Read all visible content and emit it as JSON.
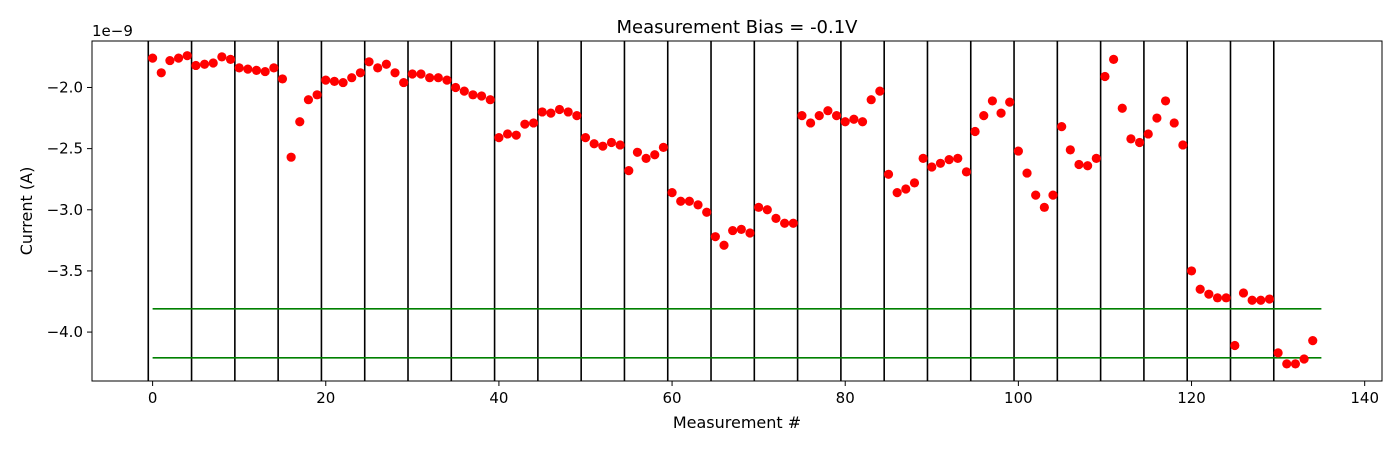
{
  "chart_data": {
    "type": "scatter",
    "title": "Measurement Bias = -0.1V",
    "xlabel": "Measurement #",
    "ylabel": "Current (A)",
    "offset_text": "1e−9",
    "xlim": [
      -7,
      142
    ],
    "ylim": [
      -4.4,
      -1.62
    ],
    "xticks": [
      0,
      20,
      40,
      60,
      80,
      100,
      120,
      140
    ],
    "yticks": [
      -2.0,
      -2.5,
      -3.0,
      -3.5,
      -4.0
    ],
    "ytick_labels": [
      "−2.0",
      "−2.5",
      "−3.0",
      "−3.5",
      "−4.0"
    ],
    "grid": false,
    "point_color": "#ff0000",
    "vline_color": "#000000",
    "hline_color": "#008000",
    "vertical_lines_x": [
      -0.5,
      4.5,
      9.5,
      14.5,
      19.5,
      24.5,
      29.5,
      34.5,
      39.5,
      44.5,
      49.5,
      54.5,
      59.5,
      64.5,
      69.5,
      74.5,
      79.5,
      84.5,
      89.5,
      94.5,
      99.5,
      104.5,
      109.5,
      114.5,
      119.5,
      124.5,
      129.5
    ],
    "horizontal_lines": [
      {
        "y": -3.81,
        "x": [
          0,
          135
        ]
      },
      {
        "y": -4.21,
        "x": [
          0,
          135
        ]
      }
    ],
    "series": [
      {
        "x": [
          0,
          1,
          2,
          3,
          4,
          5,
          6,
          7,
          8,
          9,
          10,
          11,
          12,
          13,
          14,
          15,
          16,
          17,
          18,
          19,
          20,
          21,
          22,
          23,
          24,
          25,
          26,
          27,
          28,
          29,
          30,
          31,
          32,
          33,
          34,
          35,
          36,
          37,
          38,
          39,
          40,
          41,
          42,
          43,
          44,
          45,
          46,
          47,
          48,
          49,
          50,
          51,
          52,
          53,
          54,
          55,
          56,
          57,
          58,
          59,
          60,
          61,
          62,
          63,
          64,
          65,
          66,
          67,
          68,
          69,
          70,
          71,
          72,
          73,
          74,
          75,
          76,
          77,
          78,
          79,
          80,
          81,
          82,
          83,
          84,
          85,
          86,
          87,
          88,
          89,
          90,
          91,
          92,
          93,
          94,
          95,
          96,
          97,
          98,
          99,
          100,
          101,
          102,
          103,
          104,
          105,
          106,
          107,
          108,
          109,
          110,
          111,
          112,
          113,
          114,
          115,
          116,
          117,
          118,
          119,
          120,
          121,
          122,
          123,
          124,
          125,
          126,
          127,
          128,
          129,
          130,
          131,
          132,
          133,
          134
        ],
        "y": [
          -1.76,
          -1.88,
          -1.78,
          -1.76,
          -1.74,
          -1.82,
          -1.81,
          -1.8,
          -1.75,
          -1.77,
          -1.84,
          -1.85,
          -1.86,
          -1.87,
          -1.84,
          -1.93,
          -2.57,
          -2.28,
          -2.1,
          -2.06,
          -1.94,
          -1.95,
          -1.96,
          -1.92,
          -1.88,
          -1.79,
          -1.84,
          -1.81,
          -1.88,
          -1.96,
          -1.89,
          -1.89,
          -1.92,
          -1.92,
          -1.94,
          -2.0,
          -2.03,
          -2.06,
          -2.07,
          -2.1,
          -2.41,
          -2.38,
          -2.39,
          -2.3,
          -2.29,
          -2.2,
          -2.21,
          -2.18,
          -2.2,
          -2.23,
          -2.41,
          -2.46,
          -2.48,
          -2.45,
          -2.47,
          -2.68,
          -2.53,
          -2.58,
          -2.55,
          -2.49,
          -2.86,
          -2.93,
          -2.93,
          -2.96,
          -3.02,
          -3.22,
          -3.29,
          -3.17,
          -3.16,
          -3.19,
          -2.98,
          -3.0,
          -3.07,
          -3.11,
          -3.11,
          -2.23,
          -2.29,
          -2.23,
          -2.19,
          -2.23,
          -2.28,
          -2.26,
          -2.28,
          -2.1,
          -2.03,
          -2.71,
          -2.86,
          -2.83,
          -2.78,
          -2.58,
          -2.65,
          -2.62,
          -2.59,
          -2.58,
          -2.69,
          -2.36,
          -2.23,
          -2.11,
          -2.21,
          -2.12,
          -2.52,
          -2.7,
          -2.88,
          -2.98,
          -2.88,
          -2.32,
          -2.51,
          -2.63,
          -2.64,
          -2.58,
          -1.91,
          -1.77,
          -2.17,
          -2.42,
          -2.45,
          -2.38,
          -2.25,
          -2.11,
          -2.29,
          -2.47,
          -3.5,
          -3.65,
          -3.69,
          -3.72,
          -3.72,
          -4.11,
          -3.68,
          -3.74,
          -3.74,
          -3.73,
          -4.17,
          -4.26,
          -4.26,
          -4.22,
          -4.07
        ]
      }
    ]
  }
}
